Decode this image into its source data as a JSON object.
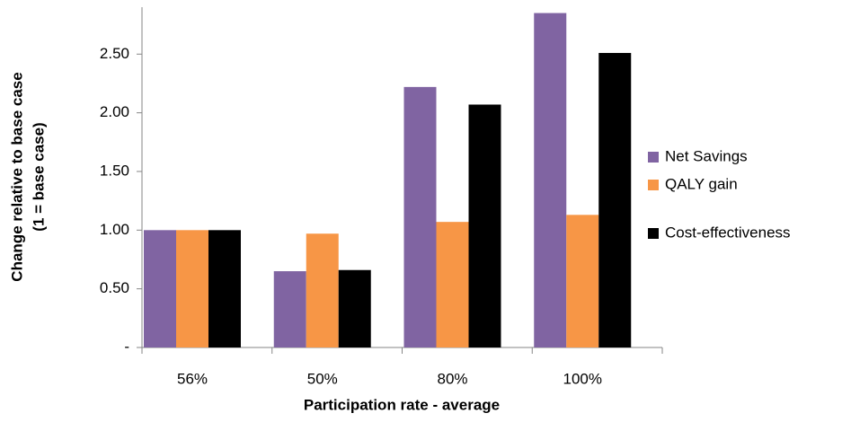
{
  "chart_data": {
    "type": "bar",
    "xlabel": "Participation rate - average",
    "ylabel": [
      "Change relative to base case",
      "(1 = base case)"
    ],
    "categories": [
      "56%",
      "50%",
      "80%",
      "100%"
    ],
    "series": [
      {
        "name": "Net Savings",
        "color": "#8064a2",
        "values": [
          1.0,
          0.65,
          2.22,
          2.85
        ]
      },
      {
        "name": "QALY gain",
        "color": "#f79646",
        "values": [
          1.0,
          0.97,
          1.07,
          1.13
        ]
      },
      {
        "name": "Cost-effectiveness",
        "color": "#000000",
        "values": [
          1.0,
          0.66,
          2.07,
          2.51
        ]
      }
    ],
    "ylim": [
      0,
      2.9
    ],
    "yticks": [
      {
        "value": 0,
        "label": "-"
      },
      {
        "value": 0.5,
        "label": "0.50"
      },
      {
        "value": 1,
        "label": "1.00"
      },
      {
        "value": 1.5,
        "label": "1.50"
      },
      {
        "value": 2,
        "label": "2.00"
      },
      {
        "value": 2.5,
        "label": "2.50"
      }
    ],
    "grid": false,
    "legend": "right"
  }
}
